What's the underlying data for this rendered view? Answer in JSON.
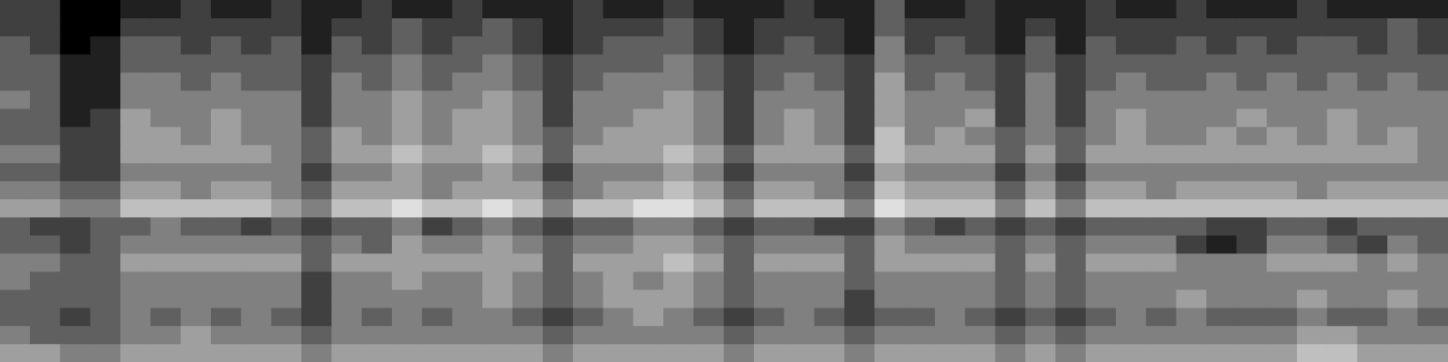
{
  "chart_data": {
    "type": "heatmap",
    "tick_labels": false,
    "zlim": [
      0,
      8
    ],
    "cells": [
      [
        2,
        2,
        0,
        0,
        1,
        1,
        2,
        1,
        1,
        2,
        1,
        1,
        2,
        1,
        1,
        2,
        1,
        1,
        1,
        2,
        1,
        1,
        2,
        1,
        1,
        1,
        2,
        1,
        1,
        3,
        1,
        1,
        2,
        1,
        1,
        1,
        2,
        1,
        1,
        2,
        1,
        1,
        1,
        2,
        1,
        1,
        1,
        1
      ],
      [
        2,
        2,
        0,
        0,
        2,
        2,
        2,
        2,
        2,
        2,
        1,
        2,
        2,
        3,
        2,
        2,
        3,
        2,
        1,
        2,
        2,
        2,
        3,
        2,
        1,
        2,
        2,
        2,
        1,
        3,
        2,
        2,
        2,
        1,
        2,
        1,
        2,
        2,
        2,
        2,
        2,
        2,
        2,
        2,
        2,
        2,
        3,
        2
      ],
      [
        3,
        2,
        0,
        1,
        3,
        3,
        2,
        3,
        2,
        3,
        1,
        3,
        2,
        3,
        2,
        3,
        3,
        2,
        1,
        2,
        3,
        3,
        3,
        2,
        1,
        2,
        3,
        2,
        1,
        4,
        2,
        3,
        2,
        1,
        3,
        1,
        3,
        2,
        2,
        3,
        2,
        3,
        2,
        3,
        3,
        2,
        3,
        2
      ],
      [
        3,
        3,
        1,
        1,
        3,
        3,
        3,
        3,
        3,
        3,
        2,
        3,
        3,
        4,
        3,
        3,
        4,
        3,
        2,
        3,
        3,
        3,
        4,
        3,
        2,
        3,
        3,
        3,
        2,
        4,
        3,
        3,
        3,
        2,
        3,
        2,
        3,
        3,
        3,
        3,
        3,
        3,
        3,
        3,
        3,
        3,
        3,
        3
      ],
      [
        3,
        3,
        1,
        1,
        4,
        4,
        3,
        4,
        3,
        3,
        2,
        4,
        3,
        4,
        3,
        4,
        4,
        3,
        2,
        3,
        4,
        4,
        4,
        3,
        2,
        3,
        4,
        3,
        2,
        5,
        3,
        4,
        3,
        2,
        4,
        2,
        3,
        4,
        3,
        3,
        4,
        3,
        4,
        3,
        4,
        3,
        4,
        3
      ],
      [
        4,
        3,
        1,
        1,
        4,
        4,
        4,
        4,
        4,
        4,
        2,
        4,
        4,
        5,
        4,
        4,
        5,
        4,
        2,
        4,
        4,
        4,
        5,
        4,
        2,
        4,
        4,
        4,
        2,
        5,
        4,
        4,
        4,
        2,
        4,
        2,
        4,
        4,
        4,
        4,
        4,
        4,
        4,
        4,
        4,
        4,
        4,
        4
      ],
      [
        3,
        3,
        1,
        2,
        5,
        4,
        4,
        5,
        4,
        4,
        2,
        4,
        4,
        5,
        4,
        5,
        5,
        4,
        2,
        4,
        4,
        5,
        5,
        4,
        2,
        4,
        5,
        4,
        2,
        5,
        4,
        4,
        5,
        2,
        4,
        2,
        4,
        5,
        4,
        4,
        4,
        5,
        4,
        4,
        5,
        4,
        4,
        4
      ],
      [
        3,
        3,
        2,
        2,
        5,
        5,
        4,
        5,
        4,
        4,
        3,
        5,
        4,
        5,
        4,
        5,
        5,
        4,
        3,
        4,
        5,
        5,
        5,
        4,
        2,
        4,
        5,
        4,
        2,
        6,
        4,
        5,
        4,
        3,
        4,
        3,
        4,
        5,
        4,
        4,
        5,
        4,
        5,
        4,
        5,
        4,
        5,
        4
      ],
      [
        4,
        4,
        2,
        2,
        5,
        5,
        5,
        5,
        5,
        4,
        3,
        5,
        5,
        6,
        5,
        5,
        6,
        5,
        3,
        5,
        5,
        5,
        6,
        5,
        3,
        5,
        5,
        5,
        3,
        6,
        5,
        5,
        5,
        3,
        5,
        3,
        5,
        5,
        5,
        5,
        5,
        5,
        5,
        5,
        5,
        5,
        5,
        4
      ],
      [
        3,
        3,
        2,
        2,
        4,
        4,
        4,
        4,
        4,
        4,
        2,
        4,
        4,
        5,
        4,
        4,
        5,
        4,
        2,
        4,
        4,
        4,
        5,
        4,
        2,
        4,
        4,
        4,
        2,
        5,
        4,
        4,
        4,
        2,
        4,
        2,
        4,
        4,
        4,
        4,
        4,
        4,
        4,
        4,
        4,
        4,
        4,
        4
      ],
      [
        4,
        4,
        3,
        3,
        5,
        5,
        4,
        5,
        5,
        4,
        3,
        5,
        5,
        5,
        4,
        5,
        5,
        5,
        3,
        4,
        5,
        5,
        6,
        5,
        3,
        5,
        5,
        4,
        3,
        6,
        5,
        5,
        5,
        3,
        5,
        3,
        5,
        5,
        4,
        5,
        5,
        5,
        5,
        4,
        5,
        5,
        5,
        5
      ],
      [
        5,
        5,
        4,
        4,
        6,
        6,
        6,
        6,
        6,
        5,
        4,
        6,
        6,
        7,
        6,
        6,
        7,
        6,
        4,
        6,
        6,
        7,
        7,
        6,
        4,
        6,
        6,
        6,
        4,
        7,
        6,
        6,
        6,
        4,
        6,
        4,
        6,
        6,
        6,
        6,
        6,
        6,
        6,
        6,
        6,
        6,
        6,
        6
      ],
      [
        3,
        2,
        2,
        3,
        3,
        4,
        3,
        3,
        2,
        3,
        2,
        3,
        3,
        4,
        2,
        3,
        4,
        3,
        2,
        3,
        3,
        4,
        4,
        3,
        2,
        3,
        3,
        2,
        2,
        4,
        3,
        2,
        3,
        2,
        3,
        2,
        3,
        3,
        3,
        3,
        2,
        2,
        3,
        3,
        2,
        3,
        3,
        3
      ],
      [
        3,
        3,
        2,
        3,
        4,
        4,
        4,
        4,
        4,
        4,
        3,
        4,
        3,
        5,
        4,
        4,
        5,
        4,
        3,
        4,
        4,
        5,
        5,
        4,
        3,
        4,
        4,
        4,
        3,
        5,
        4,
        4,
        4,
        3,
        4,
        3,
        4,
        4,
        4,
        2,
        1,
        2,
        4,
        4,
        3,
        2,
        4,
        3
      ],
      [
        4,
        4,
        3,
        3,
        5,
        5,
        5,
        5,
        5,
        5,
        3,
        5,
        5,
        5,
        5,
        5,
        5,
        5,
        3,
        5,
        5,
        5,
        6,
        5,
        3,
        5,
        5,
        5,
        3,
        5,
        5,
        5,
        5,
        3,
        5,
        3,
        5,
        5,
        5,
        4,
        4,
        4,
        5,
        5,
        5,
        4,
        5,
        4
      ],
      [
        4,
        3,
        3,
        3,
        4,
        4,
        4,
        4,
        4,
        4,
        2,
        4,
        4,
        5,
        4,
        4,
        5,
        4,
        3,
        4,
        5,
        4,
        5,
        4,
        3,
        4,
        4,
        4,
        3,
        4,
        4,
        4,
        4,
        3,
        4,
        3,
        4,
        4,
        4,
        4,
        4,
        4,
        4,
        4,
        4,
        4,
        4,
        4
      ],
      [
        3,
        3,
        3,
        3,
        4,
        4,
        4,
        4,
        4,
        4,
        2,
        4,
        4,
        4,
        4,
        4,
        5,
        4,
        3,
        4,
        5,
        5,
        5,
        4,
        3,
        4,
        4,
        4,
        2,
        4,
        4,
        4,
        4,
        3,
        4,
        3,
        4,
        4,
        4,
        5,
        4,
        4,
        4,
        5,
        4,
        4,
        5,
        4
      ],
      [
        3,
        3,
        2,
        3,
        4,
        3,
        4,
        3,
        4,
        3,
        2,
        4,
        3,
        4,
        3,
        4,
        4,
        3,
        2,
        3,
        4,
        5,
        4,
        3,
        2,
        3,
        4,
        3,
        2,
        3,
        3,
        4,
        3,
        2,
        3,
        2,
        3,
        4,
        3,
        4,
        3,
        3,
        3,
        4,
        3,
        3,
        4,
        3
      ],
      [
        4,
        3,
        3,
        3,
        4,
        4,
        5,
        4,
        4,
        4,
        3,
        4,
        4,
        4,
        4,
        4,
        4,
        4,
        3,
        4,
        4,
        4,
        4,
        4,
        3,
        4,
        4,
        4,
        3,
        4,
        4,
        4,
        4,
        3,
        4,
        3,
        4,
        4,
        4,
        4,
        4,
        4,
        4,
        5,
        5,
        4,
        4,
        4
      ],
      [
        5,
        5,
        4,
        4,
        5,
        5,
        5,
        5,
        5,
        5,
        4,
        5,
        5,
        5,
        5,
        5,
        5,
        5,
        4,
        5,
        5,
        5,
        5,
        5,
        4,
        5,
        5,
        5,
        4,
        5,
        5,
        5,
        5,
        4,
        5,
        4,
        5,
        5,
        5,
        5,
        5,
        5,
        5,
        6,
        6,
        5,
        5,
        5
      ]
    ]
  }
}
